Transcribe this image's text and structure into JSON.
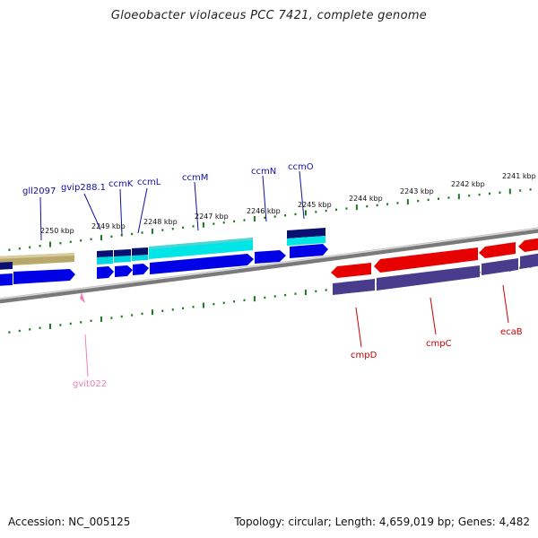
{
  "title": "Gloeobacter violaceus PCC 7421, complete genome",
  "footer": {
    "accession": "Accession: NC_005125",
    "summary": "Topology: circular; Length: 4,659,019 bp; Genes: 4,482"
  },
  "colors": {
    "forward_cds": "#0000e6",
    "reverse_cds": "#e60000",
    "reverse_cds_shadow": "#4a3c8c",
    "rna": "#00e5e6",
    "dark_navy": "#0a1070",
    "olive": "#b8a869",
    "pseudo_pink": "#f5a0c8",
    "tick_green": "#1a7a1a",
    "forward_label": "#1010a0",
    "reverse_label": "#cc0000",
    "pseudo_label": "#f080b8"
  },
  "upper_ticks": [
    "2250 kbp",
    "2249 kbp",
    "2248 kbp",
    "2247 kbp",
    "2246 kbp",
    "2245 kbp",
    "2244 kbp",
    "2243 kbp",
    "2242 kbp",
    "2241 kbp"
  ],
  "lower_ticks_count": 40,
  "forward_genes": [
    "gll2097",
    "gvip288.1",
    "ccmK",
    "ccmL",
    "ccmM",
    "ccmN",
    "ccmO"
  ],
  "reverse_genes": [
    "cmpD",
    "cmpC",
    "ecaB"
  ],
  "pseudo_genes": [
    "gvit022"
  ]
}
